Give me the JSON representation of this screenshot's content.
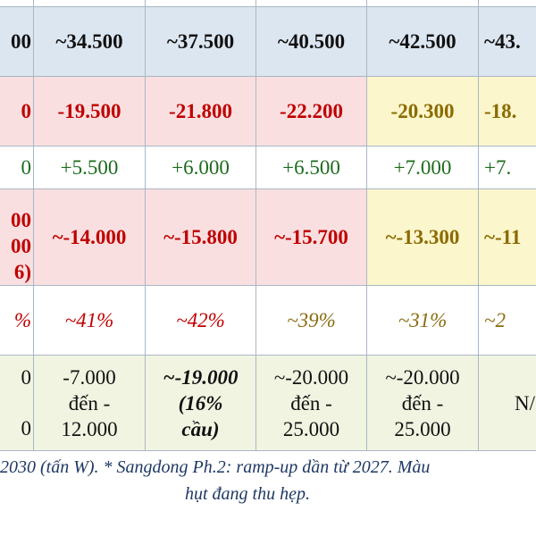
{
  "table": {
    "row_forecast": {
      "c0": "00",
      "c1": "~34.500",
      "c2": "~37.500",
      "c3": "~40.500",
      "c4": "~42.500",
      "c5": "~43."
    },
    "row_gap": {
      "c0": "0",
      "c1": "-19.500",
      "c2": "-21.800",
      "c3": "-22.200",
      "c4": "-20.300",
      "c5": "-18."
    },
    "row_added": {
      "c0": "0",
      "c1": "+5.500",
      "c2": "+6.000",
      "c3": "+6.500",
      "c4": "+7.000",
      "c5": "+7."
    },
    "row_net": {
      "c0_l1": "00",
      "c0_l2": "00",
      "c0_l3": "6)",
      "c1": "~-14.000",
      "c2": "~-15.800",
      "c3": "~-15.700",
      "c4": "~-13.300",
      "c5": "~-11"
    },
    "row_pct": {
      "c0": "%",
      "c1": "~41%",
      "c2": "~42%",
      "c3": "~39%",
      "c4": "~31%",
      "c5": "~2"
    },
    "row_range": {
      "c0_l1": "0",
      "c0_l2": "0",
      "c1_l1": "-7.000",
      "c1_l2": "đến -",
      "c1_l3": "12.000",
      "c2_l1": "~-19.000",
      "c2_l2": "(16%",
      "c2_l3": "cầu)",
      "c3_l1": "~-20.000",
      "c3_l2": "đến -",
      "c3_l3": "25.000",
      "c4_l1": "~-20.000",
      "c4_l2": "đến -",
      "c4_l3": "25.000",
      "c5": "N/"
    }
  },
  "footnote": {
    "line1": "2030 (tấn W). * Sangdong Ph.2: ramp-up dần từ 2027. Màu",
    "line2": "hụt đang thu hẹp."
  }
}
